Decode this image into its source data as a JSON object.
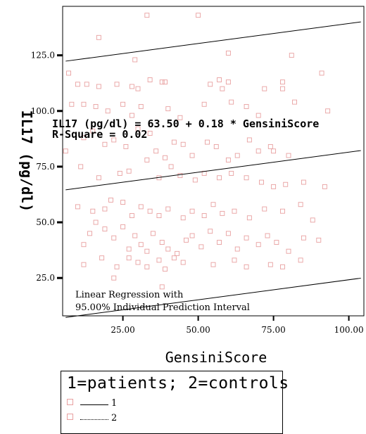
{
  "chart_data": {
    "type": "scatter",
    "xlabel": "GensiniScore",
    "ylabel": "IL17 (pg/dl)",
    "xlim": [
      5,
      105
    ],
    "ylim": [
      8,
      147
    ],
    "x_ticks": [
      25,
      50,
      75,
      100
    ],
    "x_tick_labels": [
      "25.00",
      "50.00",
      "75.00",
      "100.00"
    ],
    "y_ticks": [
      25,
      50,
      75,
      100,
      125
    ],
    "y_tick_labels": [
      "25.0",
      "50.0",
      "75.0",
      "100.0",
      "125.0"
    ],
    "regression": {
      "intercept": 63.5,
      "slope": 0.18,
      "upper_offset": 57.8,
      "lower_offset": -57.3
    },
    "annotations": {
      "equation": "IL17 (pg/dl) = 63.50 + 0.18 * GensiniScore",
      "rsquare": "R-Square = 0.02",
      "method_line1": "Linear Regression with",
      "method_line2": "95.00% Individual Prediction Interval"
    },
    "legend": {
      "title": "1=patients; 2=controls",
      "entries": [
        {
          "label": "1",
          "line_style": "solid"
        },
        {
          "label": "2",
          "line_style": "dotted"
        }
      ]
    },
    "series": [
      {
        "name": "1",
        "color": "#e8a0a0",
        "points": [
          [
            33,
            143
          ],
          [
            50,
            143
          ],
          [
            17,
            133
          ],
          [
            29,
            123
          ],
          [
            60,
            126
          ],
          [
            81,
            125
          ],
          [
            7,
            117
          ],
          [
            91,
            117
          ],
          [
            10,
            112
          ],
          [
            13,
            112
          ],
          [
            17,
            111
          ],
          [
            23,
            112
          ],
          [
            28,
            111
          ],
          [
            30,
            110
          ],
          [
            34,
            114
          ],
          [
            38,
            113
          ],
          [
            39,
            113
          ],
          [
            54,
            112
          ],
          [
            57,
            114
          ],
          [
            58,
            110
          ],
          [
            60,
            113
          ],
          [
            72,
            110
          ],
          [
            78,
            113
          ],
          [
            78,
            110
          ],
          [
            8,
            103
          ],
          [
            12,
            103
          ],
          [
            16,
            102
          ],
          [
            20,
            100
          ],
          [
            25,
            103
          ],
          [
            28,
            98
          ],
          [
            31,
            102
          ],
          [
            40,
            101
          ],
          [
            44,
            97
          ],
          [
            52,
            103
          ],
          [
            61,
            104
          ],
          [
            66,
            102
          ],
          [
            70,
            98
          ],
          [
            82,
            104
          ],
          [
            93,
            100
          ],
          [
            6,
            82
          ],
          [
            12,
            88
          ],
          [
            15,
            91
          ],
          [
            19,
            85
          ],
          [
            22,
            87
          ],
          [
            26,
            84
          ],
          [
            30,
            92
          ],
          [
            34,
            90
          ],
          [
            36,
            82
          ],
          [
            39,
            79
          ],
          [
            42,
            86
          ],
          [
            45,
            85
          ],
          [
            48,
            80
          ],
          [
            53,
            86
          ],
          [
            56,
            84
          ],
          [
            60,
            78
          ],
          [
            63,
            80
          ],
          [
            67,
            87
          ],
          [
            70,
            82
          ],
          [
            74,
            84
          ],
          [
            75,
            82
          ],
          [
            80,
            80
          ],
          [
            11,
            75
          ],
          [
            17,
            70
          ],
          [
            24,
            72
          ],
          [
            27,
            73
          ],
          [
            33,
            78
          ],
          [
            37,
            70
          ],
          [
            41,
            75
          ],
          [
            44,
            71
          ],
          [
            49,
            69
          ],
          [
            52,
            72
          ],
          [
            57,
            70
          ],
          [
            61,
            72
          ],
          [
            66,
            70
          ],
          [
            71,
            68
          ],
          [
            75,
            66
          ],
          [
            79,
            67
          ],
          [
            85,
            68
          ],
          [
            92,
            66
          ],
          [
            10,
            57
          ],
          [
            15,
            55
          ],
          [
            19,
            56
          ],
          [
            21,
            60
          ],
          [
            25,
            59
          ],
          [
            28,
            53
          ],
          [
            31,
            57
          ],
          [
            34,
            55
          ],
          [
            37,
            53
          ],
          [
            40,
            56
          ],
          [
            45,
            52
          ],
          [
            48,
            55
          ],
          [
            52,
            53
          ],
          [
            55,
            58
          ],
          [
            58,
            54
          ],
          [
            62,
            55
          ],
          [
            67,
            52
          ],
          [
            72,
            56
          ],
          [
            78,
            55
          ],
          [
            84,
            58
          ],
          [
            88,
            51
          ],
          [
            12,
            40
          ],
          [
            14,
            45
          ],
          [
            16,
            50
          ],
          [
            19,
            47
          ],
          [
            22,
            43
          ],
          [
            25,
            48
          ],
          [
            27,
            38
          ],
          [
            29,
            44
          ],
          [
            31,
            40
          ],
          [
            33,
            37
          ],
          [
            35,
            45
          ],
          [
            38,
            41
          ],
          [
            40,
            38
          ],
          [
            43,
            36
          ],
          [
            46,
            42
          ],
          [
            48,
            44
          ],
          [
            51,
            39
          ],
          [
            54,
            46
          ],
          [
            57,
            41
          ],
          [
            60,
            45
          ],
          [
            63,
            38
          ],
          [
            66,
            43
          ],
          [
            70,
            40
          ],
          [
            73,
            44
          ],
          [
            76,
            41
          ],
          [
            80,
            37
          ],
          [
            85,
            43
          ],
          [
            90,
            42
          ],
          [
            12,
            31
          ],
          [
            18,
            34
          ],
          [
            23,
            30
          ],
          [
            27,
            34
          ],
          [
            30,
            32
          ],
          [
            33,
            30
          ],
          [
            37,
            33
          ],
          [
            39,
            29
          ],
          [
            42,
            34
          ],
          [
            45,
            32
          ],
          [
            55,
            31
          ],
          [
            62,
            33
          ],
          [
            66,
            30
          ],
          [
            74,
            31
          ],
          [
            78,
            30
          ],
          [
            84,
            33
          ],
          [
            22,
            25
          ],
          [
            38,
            21
          ]
        ]
      }
    ]
  }
}
